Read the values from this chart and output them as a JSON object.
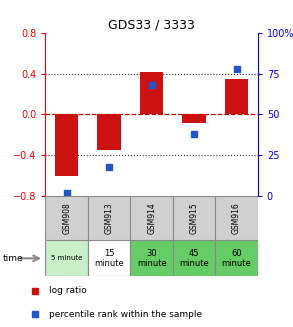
{
  "title": "GDS33 / 3333",
  "categories": [
    "GSM908",
    "GSM913",
    "GSM914",
    "GSM915",
    "GSM916"
  ],
  "log_ratio": [
    -0.6,
    -0.35,
    0.42,
    -0.08,
    0.35
  ],
  "percentile": [
    2,
    18,
    68,
    38,
    78
  ],
  "left_ylim": [
    -0.8,
    0.8
  ],
  "right_ylim": [
    0,
    100
  ],
  "left_yticks": [
    -0.8,
    -0.4,
    0.0,
    0.4,
    0.8
  ],
  "right_yticks": [
    0,
    25,
    50,
    75,
    100
  ],
  "right_yticklabels": [
    "0",
    "25",
    "50",
    "75",
    "100%"
  ],
  "bar_color": "#cc1111",
  "dot_color": "#2255cc",
  "time_labels": [
    "5 minute",
    "15\nminute",
    "30\nminute",
    "45\nminute",
    "60\nminute"
  ],
  "time_bg_colors": [
    "#c8f0c8",
    "#ffffff",
    "#66cc66",
    "#66cc66",
    "#66cc66"
  ],
  "gsm_bg_color": "#d0d0d0",
  "legend_bar_label": "log ratio",
  "legend_dot_label": "percentile rank within the sample",
  "time_row_label": "time",
  "dotted_line_color": "#333333",
  "zero_line_color": "#cc0000",
  "plot_bg_color": "#ffffff"
}
